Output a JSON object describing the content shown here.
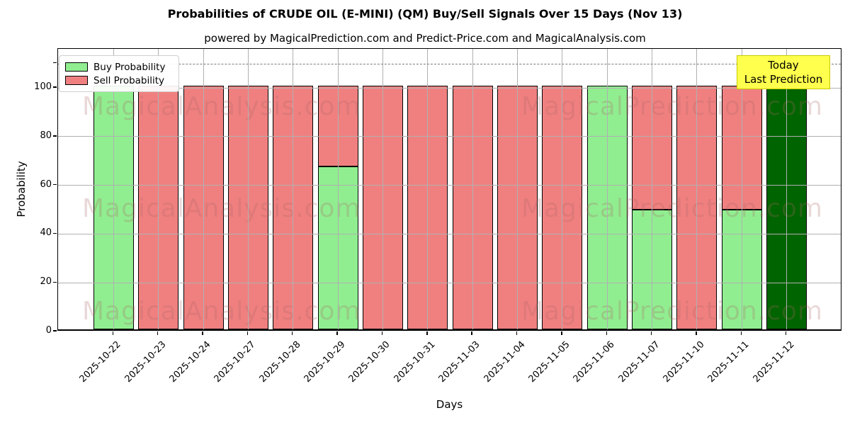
{
  "title": "Probabilities of CRUDE OIL (E-MINI) (QM) Buy/Sell Signals Over 15 Days (Nov 13)",
  "subtitle": "powered by MagicalPrediction.com and Predict-Price.com and MagicalAnalysis.com",
  "legend": {
    "items": [
      {
        "label": "Buy Probability",
        "color": "#90ee90"
      },
      {
        "label": "Sell Probability",
        "color": "#f08080"
      }
    ]
  },
  "annotation": {
    "line1": "Today",
    "line2": "Last Prediction",
    "bg": "#ffff4d",
    "border": "#c9c900"
  },
  "watermark": {
    "left": "MagicalAnalysis.com",
    "right": "MagicalPrediction.com",
    "color": "rgba(170,100,100,0.25)"
  },
  "axes": {
    "xlabel": "Days",
    "ylabel": "Probability",
    "yticks": [
      0,
      20,
      40,
      60,
      80,
      100
    ],
    "ylim": [
      0,
      116
    ],
    "dashed_line_y": 110,
    "grid": true
  },
  "chart_data": {
    "type": "bar",
    "stacked": true,
    "title": "Probabilities of CRUDE OIL (E-MINI) (QM) Buy/Sell Signals Over 15 Days (Nov 13)",
    "xlabel": "Days",
    "ylabel": "Probability",
    "ylim": [
      0,
      116
    ],
    "dashed_line_y": 110,
    "legend_position": "upper left",
    "categories": [
      "2025-10-22",
      "2025-10-23",
      "2025-10-24",
      "2025-10-27",
      "2025-10-28",
      "2025-10-29",
      "2025-10-30",
      "2025-10-31",
      "2025-11-03",
      "2025-11-04",
      "2025-11-05",
      "2025-11-06",
      "2025-11-07",
      "2025-11-10",
      "2025-11-11",
      "2025-11-12"
    ],
    "series": [
      {
        "name": "Buy Probability",
        "color": "#90ee90",
        "values": [
          100,
          0,
          0,
          0,
          0,
          67,
          0,
          0,
          0,
          0,
          0,
          100,
          49,
          0,
          49,
          0
        ]
      },
      {
        "name": "Sell Probability",
        "color": "#f08080",
        "values": [
          0,
          100,
          100,
          100,
          100,
          33,
          100,
          100,
          100,
          100,
          100,
          0,
          51,
          100,
          51,
          0
        ]
      },
      {
        "name": "Today Last Prediction",
        "color": "#006400",
        "values": [
          0,
          0,
          0,
          0,
          0,
          0,
          0,
          0,
          0,
          0,
          0,
          0,
          0,
          0,
          0,
          100
        ]
      }
    ]
  }
}
